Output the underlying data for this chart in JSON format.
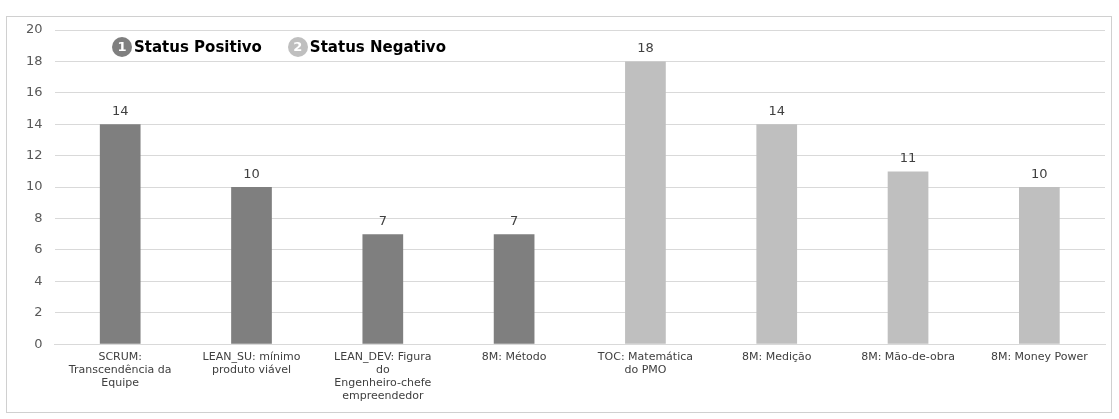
{
  "chart_data": {
    "type": "bar",
    "categories": [
      "SCRUM: Transcendência da Equipe",
      "LEAN_SU: mínimo produto viável",
      "LEAN_DEV: Figura do Engenheiro-chefe empreendedor",
      "8M: Método",
      "TOC: Matemática do PMO",
      "8M: Medição",
      "8M: Mão-de-obra",
      "8M: Money Power"
    ],
    "series": [
      {
        "name": "Status Positivo",
        "color": "#7f7f7f",
        "values": [
          14,
          10,
          7,
          7,
          null,
          null,
          null,
          null
        ]
      },
      {
        "name": "Status Negativo",
        "color": "#bfbfbf",
        "values": [
          null,
          null,
          null,
          null,
          18,
          14,
          11,
          10
        ]
      }
    ],
    "ylim": [
      0,
      20
    ],
    "yticks": [
      0,
      2,
      4,
      6,
      8,
      10,
      12,
      14,
      16,
      18,
      20
    ],
    "annotations": [
      "1",
      "2"
    ],
    "grid": "y",
    "legend": "top left",
    "data_labels": true
  }
}
